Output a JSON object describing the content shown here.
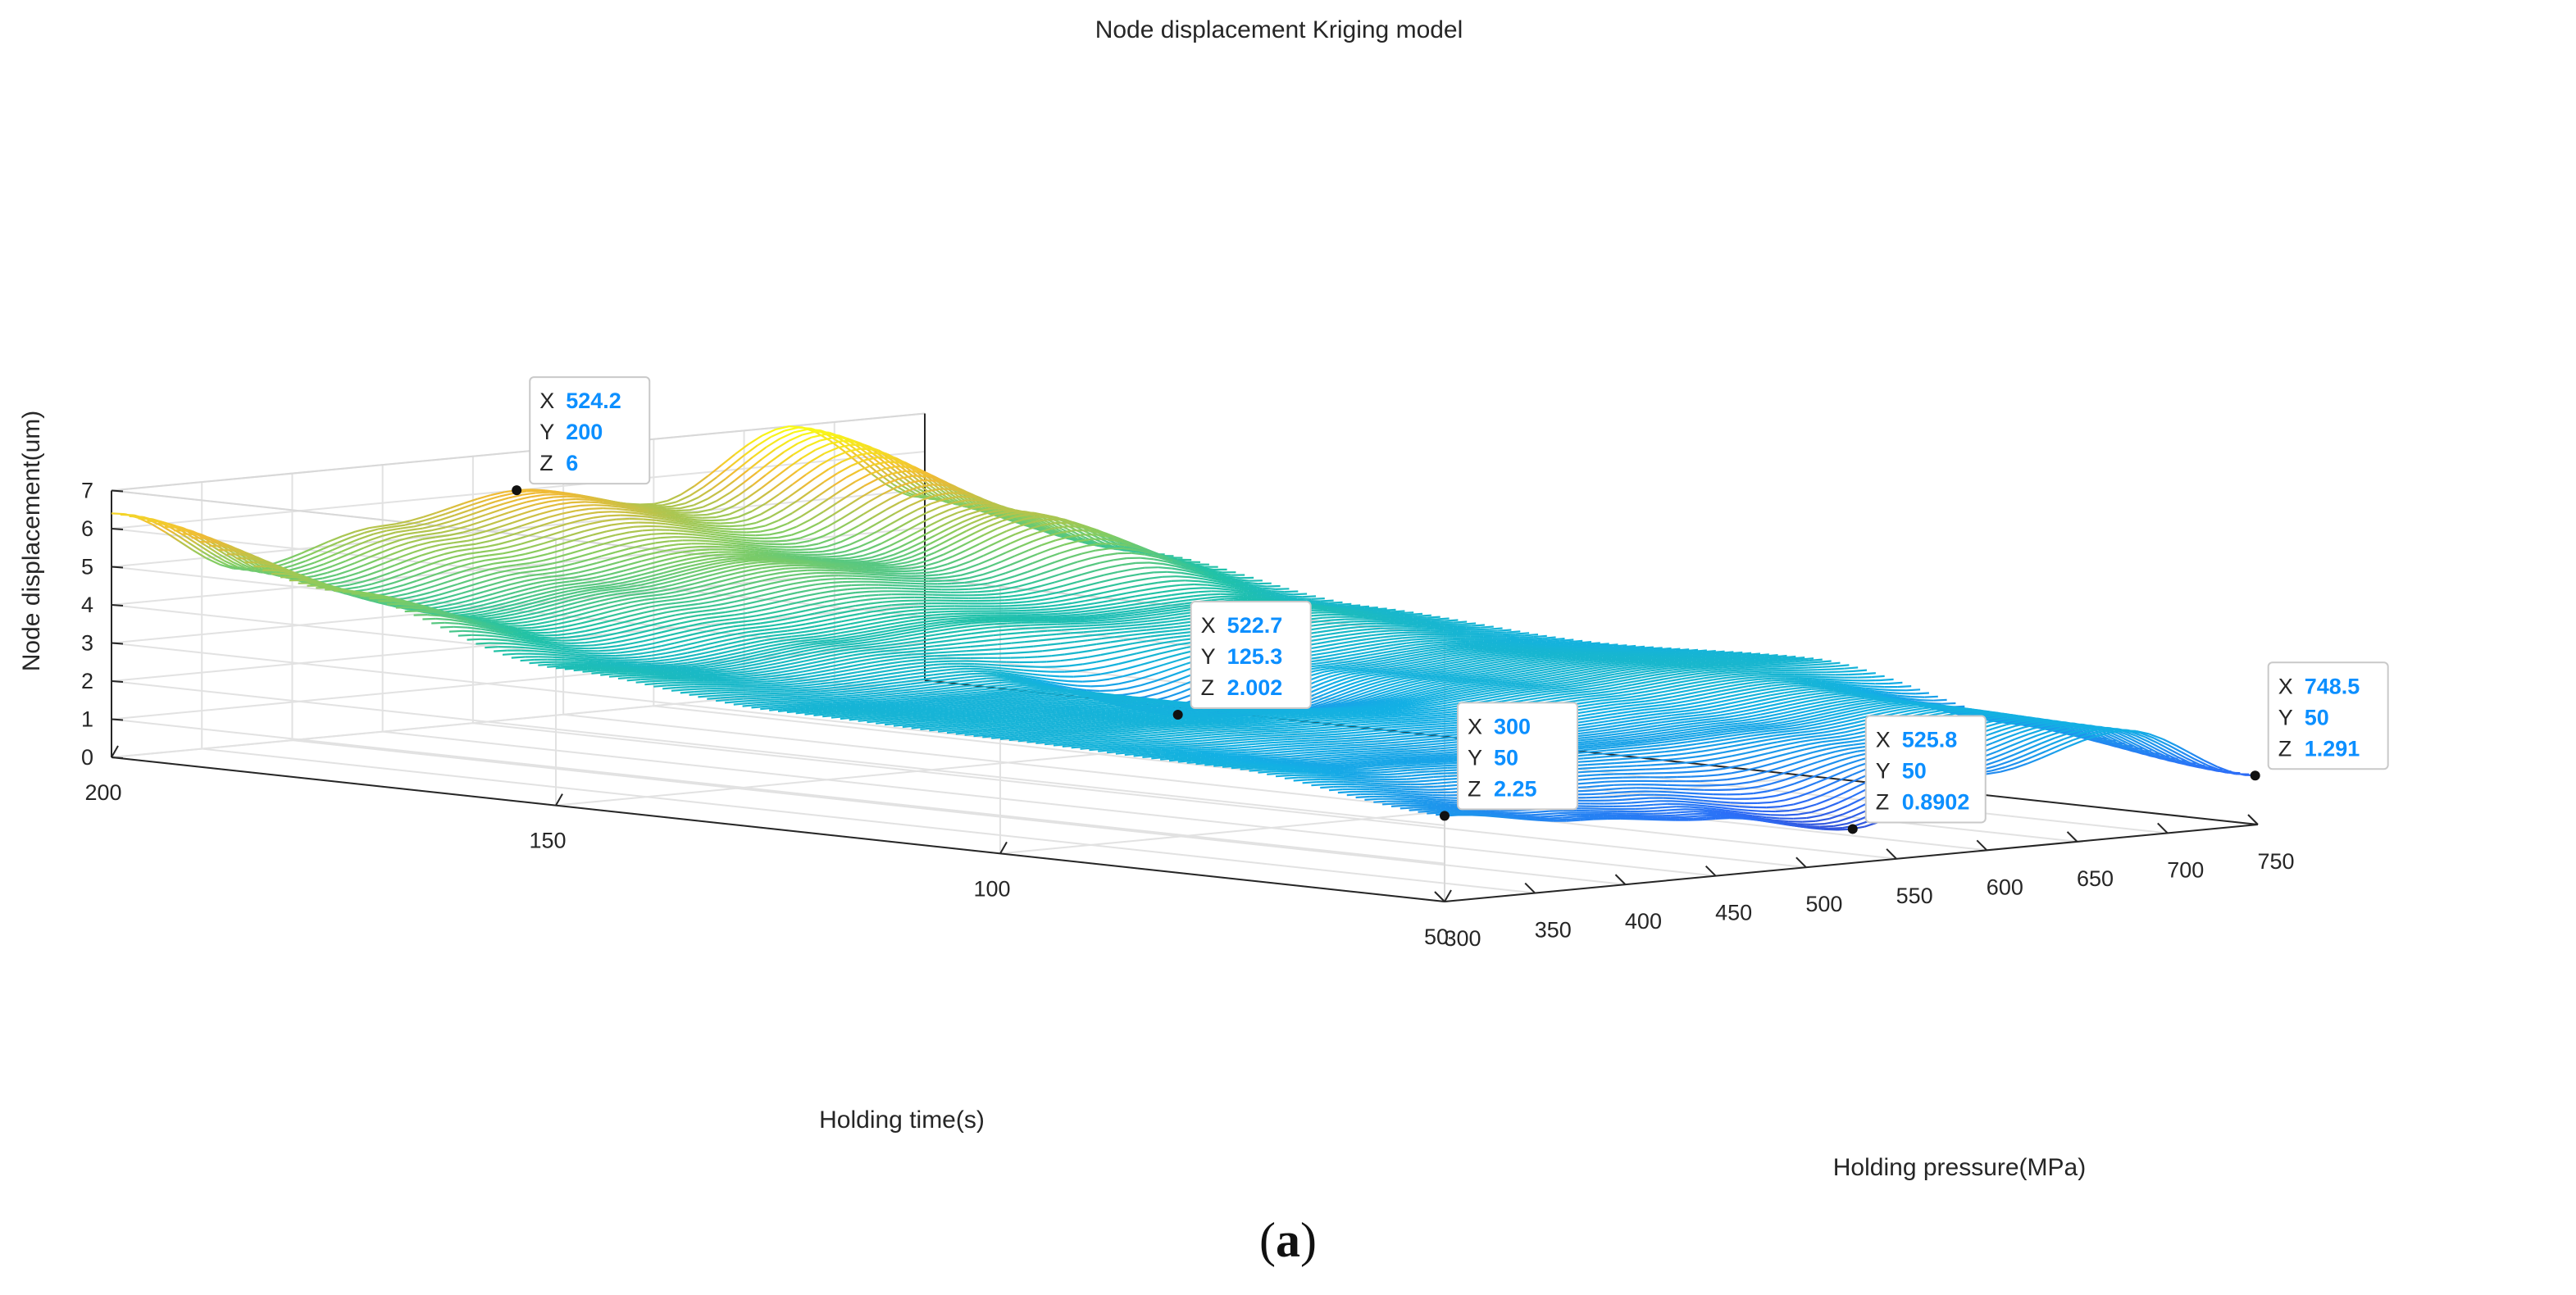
{
  "chart_data": {
    "type": "surface",
    "title": "Node displacement Kriging model",
    "zlabel": "Node displacement(um)",
    "ylabel": "Holding time(s)",
    "xlabel": "Holding pressure(MPa)",
    "xlim": [
      300,
      750
    ],
    "ylim": [
      50,
      200
    ],
    "zlim": [
      0,
      7
    ],
    "x_ticks": [
      300,
      350,
      400,
      450,
      500,
      550,
      600,
      650,
      700,
      750
    ],
    "y_ticks": [
      50,
      100,
      150,
      200
    ],
    "z_ticks": [
      0,
      1,
      2,
      3,
      4,
      5,
      6,
      7
    ],
    "colormap": "parula",
    "surface_samples": {
      "x": [
        300,
        375,
        450,
        525,
        600,
        675,
        750
      ],
      "y": [
        200,
        175,
        150,
        125,
        100,
        75,
        50
      ],
      "z": [
        [
          6.4,
          4.6,
          5.4,
          6.0,
          5.3,
          7.0,
          4.8
        ],
        [
          5.0,
          4.0,
          4.4,
          4.8,
          4.4,
          5.4,
          4.0
        ],
        [
          3.6,
          3.3,
          3.6,
          3.8,
          3.6,
          3.7,
          3.2
        ],
        [
          3.1,
          3.0,
          3.0,
          2.0,
          2.9,
          3.1,
          2.9
        ],
        [
          3.0,
          3.0,
          2.9,
          2.8,
          3.0,
          3.2,
          3.1
        ],
        [
          2.9,
          2.6,
          2.5,
          2.5,
          2.6,
          2.9,
          2.0
        ],
        [
          2.25,
          1.8,
          1.5,
          0.89,
          2.0,
          2.8,
          1.29
        ]
      ]
    },
    "datatips": [
      {
        "x": "524.2",
        "y": "200",
        "z": "6"
      },
      {
        "x": "522.7",
        "y": "125.3",
        "z": "2.002"
      },
      {
        "x": "300",
        "y": "50",
        "z": "2.25"
      },
      {
        "x": "525.8",
        "y": "50",
        "z": "0.8902"
      },
      {
        "x": "748.5",
        "y": "50",
        "z": "1.291"
      }
    ],
    "datatip_keys": [
      "X",
      "Y",
      "Z"
    ]
  },
  "caption": {
    "open": "(",
    "letter": "a",
    "close": ")"
  }
}
